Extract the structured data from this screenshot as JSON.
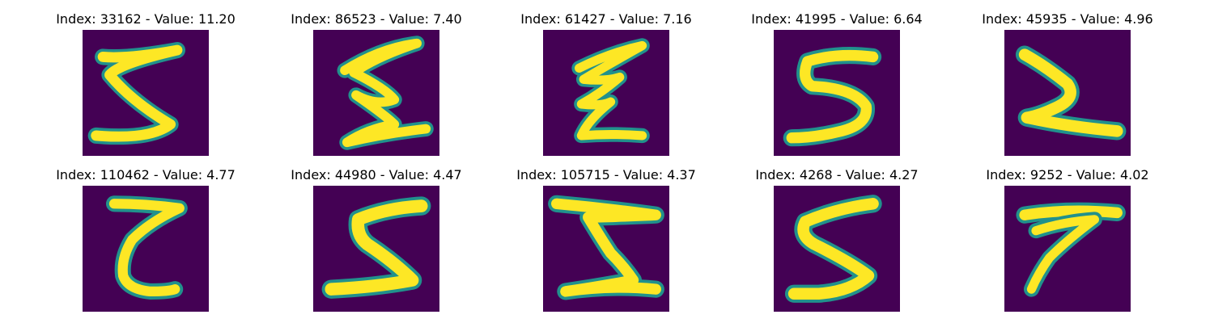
{
  "chart_data": {
    "type": "image_grid",
    "colormap": {
      "low": "#440154",
      "mid": "#21918c",
      "high": "#fde725"
    },
    "panels": [
      {
        "title": "Index: 33162 - Value: 11.20",
        "index": 33162,
        "value": 11.2,
        "digit_shape": "5-like stroke"
      },
      {
        "title": "Index: 86523 - Value: 7.40",
        "index": 86523,
        "value": 7.4,
        "digit_shape": "zigzag stroke"
      },
      {
        "title": "Index: 61427 - Value: 7.16",
        "index": 61427,
        "value": 7.16,
        "digit_shape": "zigzag stroke"
      },
      {
        "title": "Index: 41995 - Value: 6.64",
        "index": 41995,
        "value": 6.64,
        "digit_shape": "5-like stroke"
      },
      {
        "title": "Index: 45935 - Value: 4.96",
        "index": 45935,
        "value": 4.96,
        "digit_shape": "diagonal stroke"
      },
      {
        "title": "Index: 110462 - Value: 4.77",
        "index": 110462,
        "value": 4.77,
        "digit_shape": "z-like stroke"
      },
      {
        "title": "Index: 44980 - Value: 4.47",
        "index": 44980,
        "value": 4.47,
        "digit_shape": "5-like stroke"
      },
      {
        "title": "Index: 105715 - Value: 4.37",
        "index": 105715,
        "value": 4.37,
        "digit_shape": "z-like stroke"
      },
      {
        "title": "Index: 4268 - Value: 4.27",
        "index": 4268,
        "value": 4.27,
        "digit_shape": "5-like stroke"
      },
      {
        "title": "Index: 9252 - Value: 4.02",
        "index": 9252,
        "value": 4.02,
        "digit_shape": "7-like stroke"
      }
    ]
  }
}
